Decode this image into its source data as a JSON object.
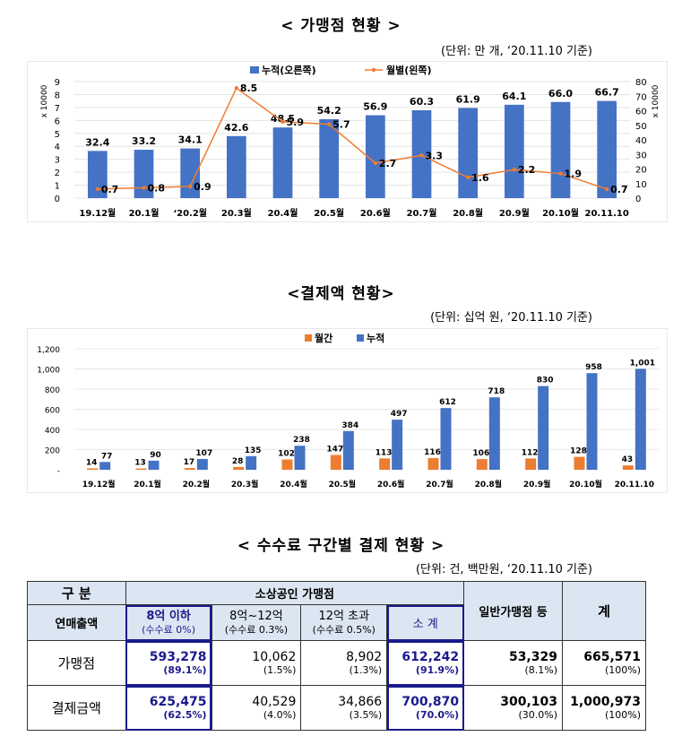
{
  "section1": {
    "title": "< 가맹점 현황 >",
    "unit": "(단위: 만 개, ‘20.11.10 기준)"
  },
  "section2": {
    "title": "<결제액 현황>",
    "unit": "(단위: 십억 원, ‘20.11.10 기준)"
  },
  "section3": {
    "title": "< 수수료 구간별 결제 현황 >",
    "unit": "(단위: 건, 백만원, ‘20.11.10 기준)"
  },
  "chart_data": [
    {
      "type": "bar",
      "categories": [
        "19.12월",
        "20.1월",
        "‘20.2월",
        "20.3월",
        "20.4월",
        "20.5월",
        "20.6월",
        "20.7월",
        "20.8월",
        "20.9월",
        "20.10월",
        "20.11.10"
      ],
      "series": [
        {
          "name": "누적(오른쪽)",
          "kind": "bar",
          "axis": "right",
          "values": [
            32.4,
            33.2,
            34.1,
            42.6,
            48.5,
            54.2,
            56.9,
            60.3,
            61.9,
            64.1,
            66.0,
            66.7
          ],
          "color": "#4472c4"
        },
        {
          "name": "월별(왼쪽)",
          "kind": "line",
          "axis": "left",
          "values": [
            0.7,
            0.8,
            0.9,
            8.5,
            5.9,
            5.7,
            2.7,
            3.3,
            1.6,
            2.2,
            1.9,
            0.7
          ],
          "color": "#ed7d31"
        }
      ],
      "left_axis": {
        "ticks": [
          "0",
          "1",
          "2",
          "3",
          "4",
          "5",
          "6",
          "7",
          "8",
          "9"
        ],
        "label": "x 10000",
        "ylim": [
          0,
          9
        ]
      },
      "right_axis": {
        "ticks": [
          "0",
          "10",
          "20",
          "30",
          "40",
          "50",
          "60",
          "70",
          "80"
        ],
        "label": "x 10000",
        "ylim": [
          0,
          80
        ]
      },
      "legend": "top"
    },
    {
      "type": "bar",
      "categories": [
        "19.12월",
        "20.1월",
        "20.2월",
        "20.3월",
        "20.4월",
        "20.5월",
        "20.6월",
        "20.7월",
        "20.8월",
        "20.9월",
        "20.10월",
        "20.11.10"
      ],
      "series": [
        {
          "name": "월간",
          "values": [
            14,
            13,
            17,
            28,
            102,
            147,
            113,
            116,
            106,
            112,
            128,
            43
          ],
          "color": "#ed7d31"
        },
        {
          "name": "누적",
          "values": [
            77,
            90,
            107,
            135,
            238,
            384,
            497,
            612,
            718,
            830,
            958,
            1001
          ],
          "color": "#4472c4"
        }
      ],
      "value_labels": {
        "월간": [
          "14",
          "13",
          "17",
          "28",
          "102",
          "147",
          "113",
          "116",
          "106",
          "112",
          "128",
          "43"
        ],
        "누적": [
          "77",
          "90",
          "107",
          "135",
          "238",
          "384",
          "497",
          "612",
          "718",
          "830",
          "958",
          "1,001"
        ]
      },
      "y_axis": {
        "ticks": [
          "-",
          "200",
          "400",
          "600",
          "800",
          "1,000",
          "1,200"
        ],
        "ylim": [
          0,
          1200
        ]
      },
      "legend": "top"
    }
  ],
  "table": {
    "h_gubun": "구 분",
    "h_revenue": "연매출액",
    "h_small_merchant": "소상공인 가맹점",
    "h_general": "일반가맹점 등",
    "h_total": "계",
    "h_c1": "8억 이하",
    "h_c1_fee": "(수수료 0%)",
    "h_c2": "8억~12억",
    "h_c2_fee": "(수수료 0.3%)",
    "h_c3": "12억 초과",
    "h_c3_fee": "(수수료 0.5%)",
    "h_subtotal": "소 계",
    "rows": [
      {
        "label": "가맹점",
        "c1": "593,278",
        "c1p": "(89.1%)",
        "c2": "10,062",
        "c2p": "(1.5%)",
        "c3": "8,902",
        "c3p": "(1.3%)",
        "sub": "612,242",
        "subp": "(91.9%)",
        "gen": "53,329",
        "genp": "(8.1%)",
        "tot": "665,571",
        "totp": "(100%)"
      },
      {
        "label": "결제금액",
        "c1": "625,475",
        "c1p": "(62.5%)",
        "c2": "40,529",
        "c2p": "(4.0%)",
        "c3": "34,866",
        "c3p": "(3.5%)",
        "sub": "700,870",
        "subp": "(70.0%)",
        "gen": "300,103",
        "genp": "(30.0%)",
        "tot": "1,000,973",
        "totp": "(100%)"
      }
    ]
  }
}
